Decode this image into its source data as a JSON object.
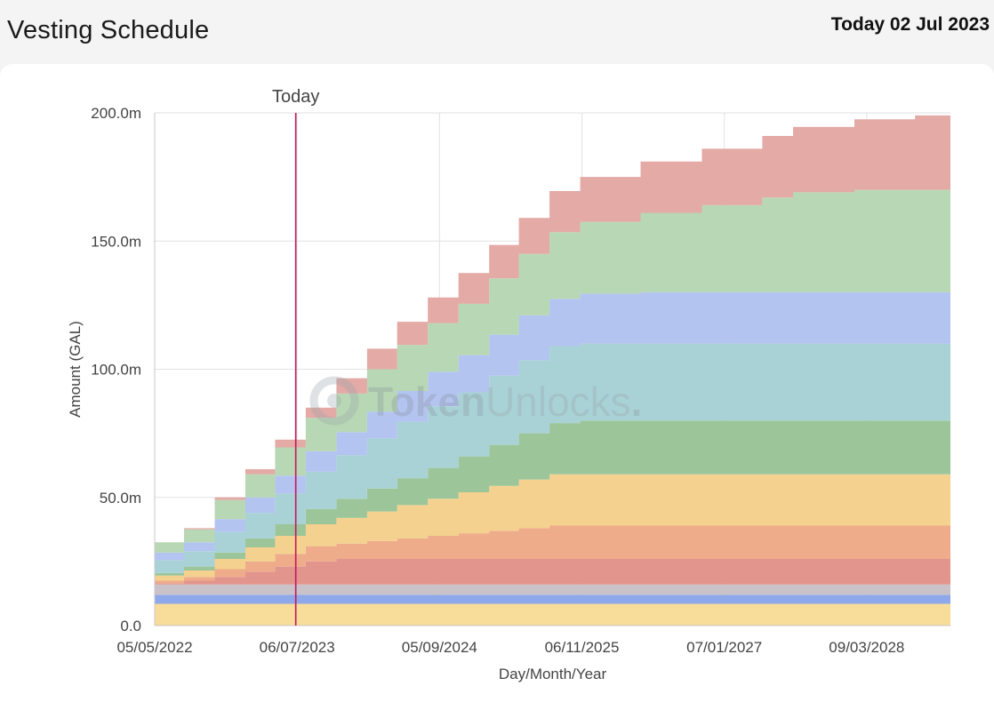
{
  "header": {
    "title": "Vesting Schedule",
    "today": "Today 02 Jul 2023"
  },
  "watermark": {
    "brand_bold": "Token",
    "brand_light": "Unlocks",
    "dot": "."
  },
  "chart_data": {
    "type": "area",
    "stacked": true,
    "xlabel": "Day/Month/Year",
    "ylabel": "Amount (GAL)",
    "ylim": [
      0,
      200
    ],
    "y_unit": "m",
    "x_range": [
      "2022-05-05",
      "2028-11-15"
    ],
    "x_ticks": [
      {
        "date": "2022-05-05",
        "label": "05/05/2022"
      },
      {
        "date": "2023-07-06",
        "label": "06/07/2023"
      },
      {
        "date": "2024-09-05",
        "label": "05/09/2024"
      },
      {
        "date": "2025-11-06",
        "label": "06/11/2025"
      },
      {
        "date": "2027-01-07",
        "label": "07/01/2027"
      },
      {
        "date": "2028-03-09",
        "label": "09/03/2028"
      }
    ],
    "y_ticks": [
      {
        "value": 0,
        "label": "0.0"
      },
      {
        "value": 50,
        "label": "50.0m"
      },
      {
        "value": 100,
        "label": "100.0m"
      },
      {
        "value": 150,
        "label": "150.0m"
      },
      {
        "value": 200,
        "label": "200.0m"
      }
    ],
    "grid": true,
    "today_marker": {
      "date": "2023-07-02",
      "label": "Today",
      "color": "#c2185b"
    },
    "series": [
      {
        "color": "#f7dc9a",
        "points": [
          [
            "2022-05-05",
            8.5
          ],
          [
            "2028-11-15",
            8.5
          ]
        ]
      },
      {
        "color": "#8fa8ea",
        "points": [
          [
            "2022-05-05",
            3.5
          ],
          [
            "2028-11-15",
            3.5
          ]
        ]
      },
      {
        "color": "#c9c2c9",
        "points": [
          [
            "2022-05-05",
            4.0
          ],
          [
            "2028-11-15",
            4.0
          ]
        ]
      },
      {
        "color": "#e2958d",
        "points": [
          [
            "2022-05-05",
            0.5
          ],
          [
            "2022-08-01",
            1.5
          ],
          [
            "2022-11-01",
            3.0
          ],
          [
            "2023-02-01",
            5.0
          ],
          [
            "2023-05-01",
            7.0
          ],
          [
            "2023-08-01",
            9.0
          ],
          [
            "2023-11-01",
            10.0
          ],
          [
            "2028-11-15",
            10.0
          ]
        ]
      },
      {
        "color": "#eeac8a",
        "points": [
          [
            "2022-05-05",
            1.0
          ],
          [
            "2022-08-01",
            1.5
          ],
          [
            "2022-11-01",
            3.0
          ],
          [
            "2023-02-01",
            4.0
          ],
          [
            "2023-05-01",
            5.0
          ],
          [
            "2023-08-01",
            6.0
          ],
          [
            "2023-11-01",
            6.0
          ],
          [
            "2024-02-01",
            7.0
          ],
          [
            "2024-05-01",
            8.0
          ],
          [
            "2024-08-01",
            9.0
          ],
          [
            "2024-11-01",
            10.0
          ],
          [
            "2025-02-01",
            11.0
          ],
          [
            "2025-05-01",
            12.0
          ],
          [
            "2025-08-01",
            13.0
          ],
          [
            "2028-11-15",
            13.0
          ]
        ]
      },
      {
        "color": "#f4d18e",
        "points": [
          [
            "2022-05-05",
            2.0
          ],
          [
            "2022-08-01",
            2.5
          ],
          [
            "2022-11-01",
            4.0
          ],
          [
            "2023-02-01",
            5.5
          ],
          [
            "2023-05-01",
            7.0
          ],
          [
            "2023-08-01",
            8.5
          ],
          [
            "2023-11-01",
            10.0
          ],
          [
            "2024-02-01",
            11.5
          ],
          [
            "2024-05-01",
            13.0
          ],
          [
            "2024-08-01",
            14.5
          ],
          [
            "2024-11-01",
            16.0
          ],
          [
            "2025-02-01",
            17.5
          ],
          [
            "2025-05-01",
            19.0
          ],
          [
            "2025-08-01",
            20.0
          ],
          [
            "2028-11-15",
            20.0
          ]
        ]
      },
      {
        "color": "#9cc59a",
        "points": [
          [
            "2022-05-05",
            1.0
          ],
          [
            "2022-08-01",
            1.5
          ],
          [
            "2022-11-01",
            2.5
          ],
          [
            "2023-02-01",
            3.5
          ],
          [
            "2023-05-01",
            4.5
          ],
          [
            "2023-08-01",
            6.0
          ],
          [
            "2023-11-01",
            7.5
          ],
          [
            "2024-02-01",
            9.0
          ],
          [
            "2024-05-01",
            10.5
          ],
          [
            "2024-08-01",
            12.0
          ],
          [
            "2024-11-01",
            14.0
          ],
          [
            "2025-02-01",
            16.0
          ],
          [
            "2025-05-01",
            18.0
          ],
          [
            "2025-08-01",
            20.0
          ],
          [
            "2025-11-01",
            21.0
          ],
          [
            "2028-11-15",
            21.0
          ]
        ]
      },
      {
        "color": "#a9d2d6",
        "points": [
          [
            "2022-05-05",
            5.0
          ],
          [
            "2022-08-01",
            6.0
          ],
          [
            "2022-11-01",
            8.0
          ],
          [
            "2023-02-01",
            10.0
          ],
          [
            "2023-05-01",
            12.0
          ],
          [
            "2023-08-01",
            14.5
          ],
          [
            "2023-11-01",
            17.0
          ],
          [
            "2024-02-01",
            19.5
          ],
          [
            "2024-05-01",
            22.0
          ],
          [
            "2024-08-01",
            24.0
          ],
          [
            "2024-11-01",
            25.0
          ],
          [
            "2025-02-01",
            27.0
          ],
          [
            "2025-05-01",
            28.5
          ],
          [
            "2025-08-01",
            30.0
          ],
          [
            "2028-11-15",
            30.0
          ]
        ]
      },
      {
        "color": "#b3c4f0",
        "points": [
          [
            "2022-05-05",
            3.0
          ],
          [
            "2022-08-01",
            3.5
          ],
          [
            "2022-11-01",
            5.0
          ],
          [
            "2023-02-01",
            6.0
          ],
          [
            "2023-05-01",
            7.0
          ],
          [
            "2023-08-01",
            8.0
          ],
          [
            "2023-11-01",
            9.0
          ],
          [
            "2024-02-01",
            10.5
          ],
          [
            "2024-05-01",
            12.0
          ],
          [
            "2024-08-01",
            13.5
          ],
          [
            "2024-11-01",
            14.5
          ],
          [
            "2025-02-01",
            16.0
          ],
          [
            "2025-05-01",
            17.5
          ],
          [
            "2025-08-01",
            18.5
          ],
          [
            "2025-11-01",
            19.5
          ],
          [
            "2026-05-01",
            20.0
          ],
          [
            "2028-11-15",
            20.0
          ]
        ]
      },
      {
        "color": "#b8d7b4",
        "points": [
          [
            "2022-05-05",
            4.0
          ],
          [
            "2022-08-01",
            5.0
          ],
          [
            "2022-11-01",
            7.5
          ],
          [
            "2023-02-01",
            9.0
          ],
          [
            "2023-05-01",
            11.0
          ],
          [
            "2023-08-01",
            13.0
          ],
          [
            "2023-11-01",
            15.0
          ],
          [
            "2024-02-01",
            16.5
          ],
          [
            "2024-05-01",
            18.0
          ],
          [
            "2024-08-01",
            19.0
          ],
          [
            "2024-11-01",
            20.0
          ],
          [
            "2025-02-01",
            22.0
          ],
          [
            "2025-05-01",
            24.0
          ],
          [
            "2025-08-01",
            26.0
          ],
          [
            "2025-11-01",
            28.0
          ],
          [
            "2026-05-01",
            31.0
          ],
          [
            "2026-11-01",
            34.0
          ],
          [
            "2027-05-01",
            37.0
          ],
          [
            "2027-08-01",
            39.0
          ],
          [
            "2028-02-01",
            40.0
          ],
          [
            "2028-11-15",
            40.0
          ]
        ]
      },
      {
        "color": "#e3aaa6",
        "points": [
          [
            "2022-05-05",
            0.0
          ],
          [
            "2022-08-01",
            0.5
          ],
          [
            "2022-11-01",
            1.0
          ],
          [
            "2023-02-01",
            2.0
          ],
          [
            "2023-05-01",
            3.0
          ],
          [
            "2023-08-01",
            4.0
          ],
          [
            "2023-11-01",
            6.0
          ],
          [
            "2024-02-01",
            8.0
          ],
          [
            "2024-05-01",
            9.0
          ],
          [
            "2024-08-01",
            10.0
          ],
          [
            "2024-11-01",
            12.0
          ],
          [
            "2025-02-01",
            13.0
          ],
          [
            "2025-05-01",
            14.0
          ],
          [
            "2025-08-01",
            16.0
          ],
          [
            "2025-11-01",
            17.5
          ],
          [
            "2026-05-01",
            20.0
          ],
          [
            "2026-11-01",
            22.0
          ],
          [
            "2027-05-01",
            24.0
          ],
          [
            "2027-08-01",
            25.5
          ],
          [
            "2028-02-01",
            27.5
          ],
          [
            "2028-08-01",
            29.0
          ],
          [
            "2028-11-15",
            30.0
          ]
        ]
      }
    ]
  }
}
